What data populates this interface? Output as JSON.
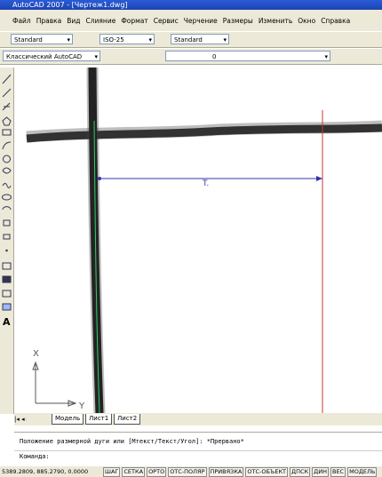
{
  "window": {
    "title": "AutoCAD 2007 - [Чертеж1.dwg]"
  },
  "menu": [
    "Файл",
    "Правка",
    "Вид",
    "Слияние",
    "Формат",
    "Сервис",
    "Черчение",
    "Размеры",
    "Изменить",
    "Окно",
    "Справка"
  ],
  "toolbar1": {
    "text_style": "Standard",
    "dim_style": "ISO-25",
    "table_style": "Standard"
  },
  "toolbar2": {
    "workspace": "Классический AutoCAD",
    "layer": "0"
  },
  "left_toolbar": {
    "text_tool": "A"
  },
  "drawing": {
    "dim_text": "T.",
    "ucs_x": "X",
    "ucs_y": "Y"
  },
  "tabs": [
    "Модель",
    "Лист1",
    "Лист2"
  ],
  "command": {
    "history": "Положение размерной дуги или [Мтекст/Текст/Угол]: *Прервано*",
    "prompt": "Команда:"
  },
  "status": {
    "coords": "5389.2809, 885.2790, 0.0000",
    "buttons": [
      "ШАГ",
      "СЕТКА",
      "ОРТО",
      "ОТС-ПОЛЯР",
      "ПРИВЯЗКА",
      "ОТС-ОБЪЕКТ",
      "ДПСК",
      "ДИН",
      "ВЕС",
      "МОДЕЛЬ"
    ]
  }
}
